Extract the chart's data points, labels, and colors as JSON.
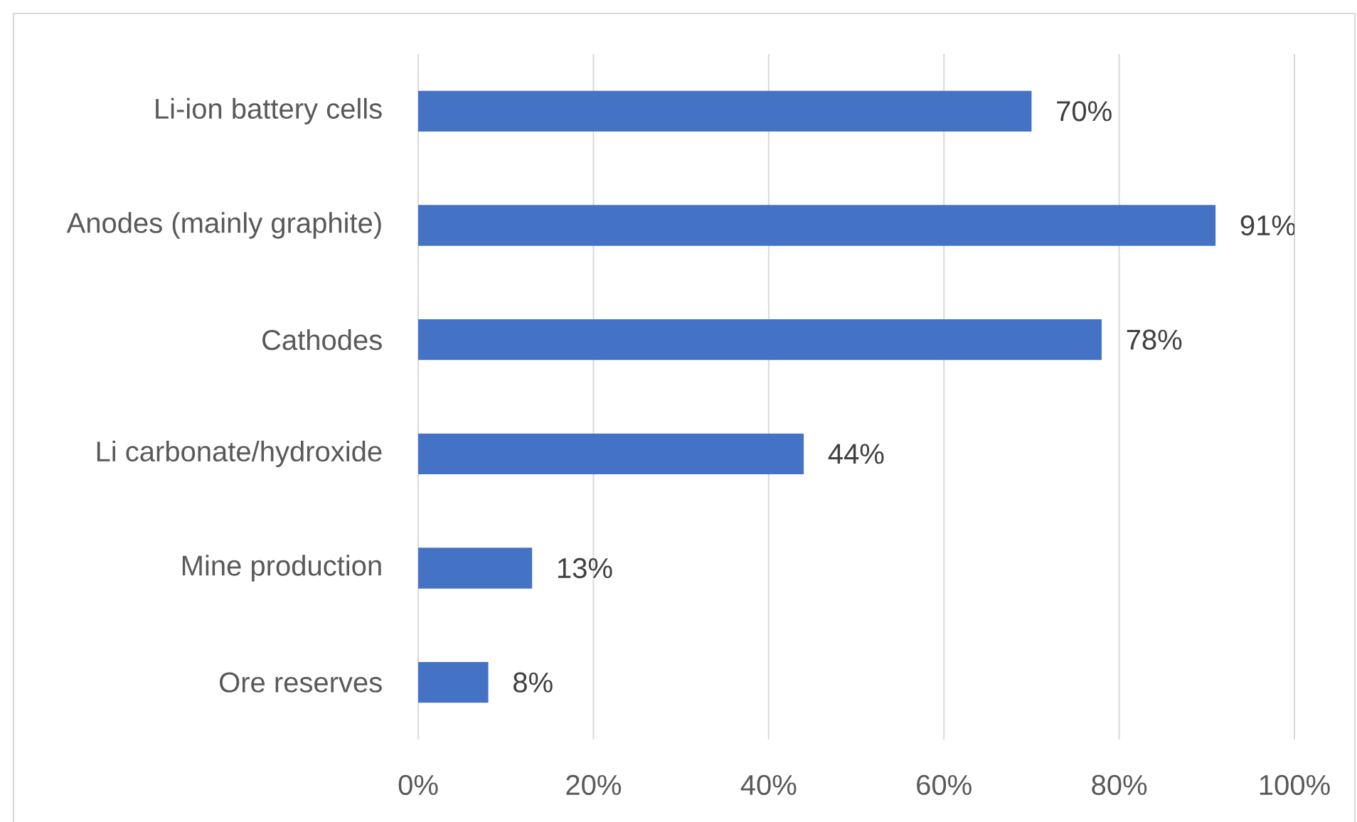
{
  "chart_data": {
    "type": "bar",
    "orientation": "horizontal",
    "categories": [
      "Li-ion battery cells",
      "Anodes (mainly graphite)",
      "Cathodes",
      "Li carbonate/hydroxide",
      "Mine production",
      "Ore reserves"
    ],
    "values": [
      70,
      91,
      78,
      44,
      13,
      8
    ],
    "value_labels": [
      "70%",
      "91%",
      "78%",
      "44%",
      "13%",
      "8%"
    ],
    "color": "#4472c4",
    "xlim": [
      0,
      100
    ],
    "xticks": [
      {
        "value": 0,
        "label": "0%"
      },
      {
        "value": 20,
        "label": "20%"
      },
      {
        "value": 40,
        "label": "40%"
      },
      {
        "value": 60,
        "label": "60%"
      },
      {
        "value": 80,
        "label": "80%"
      },
      {
        "value": 100,
        "label": "100%"
      }
    ],
    "grid": "x"
  }
}
